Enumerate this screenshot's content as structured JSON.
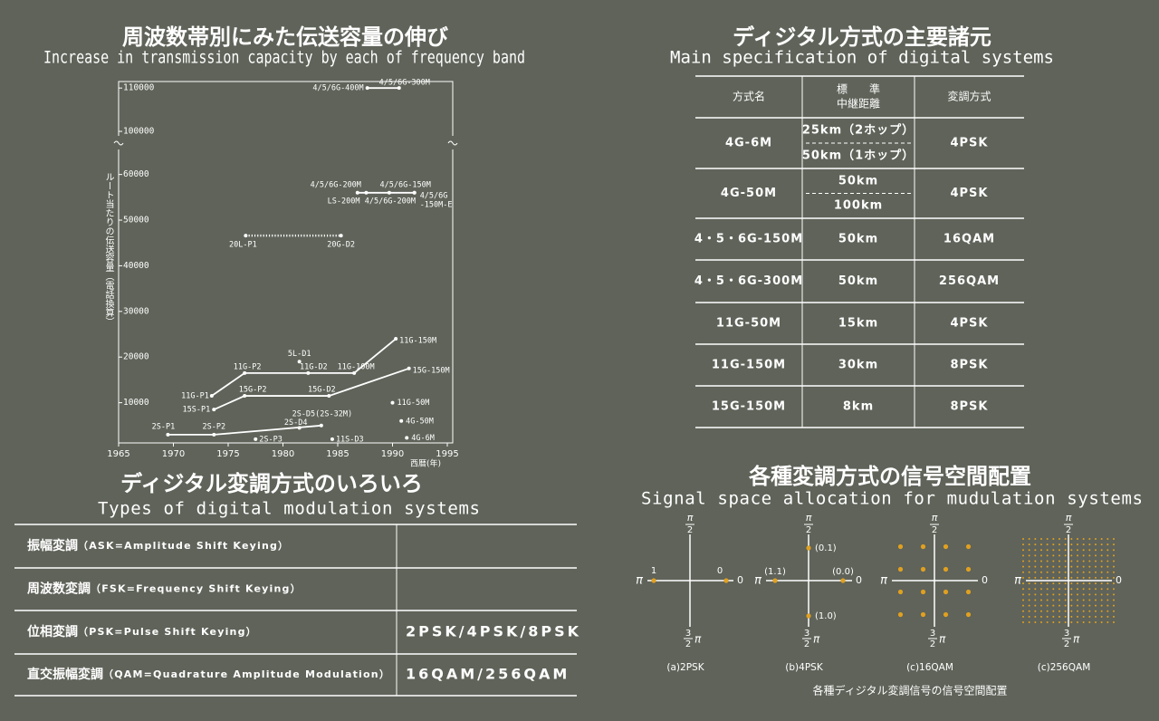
{
  "chart_data": {
    "type": "line",
    "title": "周波数帯別にみた伝送容量の伸び",
    "subtitle": "Increase in transmission capacity by each of frequency band",
    "y_label": "ルート当たりの伝送容量（電話換算）",
    "x_label": "西暦(年)",
    "xlim": [
      1965,
      1995
    ],
    "xticks": [
      1965,
      1970,
      1975,
      1980,
      1985,
      1990,
      1995
    ],
    "ylim": [
      [
        0,
        61000
      ],
      [
        98000,
        111500
      ]
    ],
    "yticks": [
      10000,
      20000,
      30000,
      40000,
      50000,
      60000,
      100000,
      110000
    ],
    "points": [
      {
        "label": "2S-P1",
        "x": 1969.5,
        "y": 3000
      },
      {
        "label": "2S-P2",
        "x": 1973.7,
        "y": 3000
      },
      {
        "label": "2S-D4",
        "x": 1981.5,
        "y": 4500
      },
      {
        "label": "2S-D5(2S-32M)",
        "x": 1983.5,
        "y": 5000
      },
      {
        "label": "2S-P3",
        "x": 1977.5,
        "y": 2000
      },
      {
        "label": "11S-D3",
        "x": 1984.5,
        "y": 2000
      },
      {
        "label": "11G-P1",
        "x": 1973.5,
        "y": 11500
      },
      {
        "label": "11G-P2",
        "x": 1976.5,
        "y": 16500
      },
      {
        "label": "11G-D2",
        "x": 1982.3,
        "y": 16500
      },
      {
        "label": "11G-100M",
        "x": 1986.5,
        "y": 16500
      },
      {
        "label": "11G-150M",
        "x": 1990.3,
        "y": 24000
      },
      {
        "label": "5L-D1",
        "x": 1981.5,
        "y": 19000
      },
      {
        "label": "15S-P1",
        "x": 1973.7,
        "y": 8500
      },
      {
        "label": "15G-P2",
        "x": 1976.5,
        "y": 11500
      },
      {
        "label": "15G-D2",
        "x": 1984.2,
        "y": 11500
      },
      {
        "label": "15G-150M",
        "x": 1991.5,
        "y": 17500
      },
      {
        "label": "11G-50M",
        "x": 1990,
        "y": 10000
      },
      {
        "label": "4G-50M",
        "x": 1990.8,
        "y": 6000
      },
      {
        "label": "4G-6M",
        "x": 1991.3,
        "y": 2300
      },
      {
        "label": "20L-P1",
        "x": 1976.6,
        "y": 46600
      },
      {
        "label": "20G-D2",
        "x": 1985.3,
        "y": 46600
      },
      {
        "label": "4/5/6G-200M",
        "x": 1986.8,
        "y": 56000
      },
      {
        "label": "LS-200M",
        "x": 1987.6,
        "y": 56000
      },
      {
        "label": "4/5/6G-200M",
        "x": 1989.7,
        "y": 56000
      },
      {
        "label": "4/5/6G-150M",
        "x": 1992,
        "y": 56000
      },
      {
        "label": [
          "4/5/6G",
          "-150M-E"
        ],
        "x": 1992,
        "y": 56000
      },
      {
        "label": "4/5/6G-400M",
        "x": 1987.7,
        "y": 110000
      },
      {
        "label": "4/5/6G-300M",
        "x": 1990.6,
        "y": 110000
      }
    ],
    "lines": [
      {
        "x": [
          1969.5,
          1973.7,
          1983.5
        ],
        "values": [
          3000,
          3000,
          5000
        ],
        "style": "solid"
      },
      {
        "x": [
          1973.5,
          1976.5,
          1986.5,
          1990.3
        ],
        "values": [
          11500,
          16500,
          16500,
          24000
        ],
        "style": "solid"
      },
      {
        "x": [
          1973.7,
          1976.5,
          1984.2,
          1991.5
        ],
        "values": [
          8500,
          11500,
          11500,
          17500
        ],
        "style": "solid"
      },
      {
        "x": [
          1976.6,
          1985.3
        ],
        "values": [
          46600,
          46600
        ],
        "style": "dotted"
      },
      {
        "x": [
          1986.8,
          1992
        ],
        "values": [
          56000,
          56000
        ],
        "style": "solid"
      },
      {
        "x": [
          1987.7,
          1990.6
        ],
        "values": [
          110000,
          110000
        ],
        "style": "solid"
      }
    ],
    "color": "#ffffff"
  },
  "spec": {
    "title": "ディジタル方式の主要諸元",
    "subtitle": "Main specification of digital systems",
    "header": [
      "方式名",
      [
        "標　　準",
        "中継距離"
      ],
      "変調方式"
    ],
    "rows": [
      [
        "4G-6M",
        [
          "25km（2ホップ）",
          "50km（1ホップ）"
        ],
        "4PSK"
      ],
      [
        "4G-50M",
        [
          "50km",
          "100km"
        ],
        "4PSK"
      ],
      [
        "4・5・6G-150M",
        "50km",
        "16QAM"
      ],
      [
        "4・5・6G-300M",
        "50km",
        "256QAM"
      ],
      [
        "11G-50M",
        "15km",
        "4PSK"
      ],
      [
        "11G-150M",
        "30km",
        "8PSK"
      ],
      [
        "15G-150M",
        "8km",
        "8PSK"
      ]
    ]
  },
  "modulation": {
    "title": "ディジタル変調方式のいろいろ",
    "subtitle": "Types of digital modulation systems",
    "rows": [
      {
        "label": "振幅変調",
        "detail": "（ASK=Amplitude Shift Keying）"
      },
      {
        "label": "周波数変調",
        "detail": "（FSK=Frequency Shift Keying）"
      },
      {
        "label": "位相変調",
        "detail": "（PSK=Pulse Shift Keying）",
        "systems": "2PSK/4PSK/8PSK"
      },
      {
        "label": "直交振幅変調",
        "detail": "（QAM=Quadrature Amplitude Modulation）",
        "systems": "16QAM/256QAM"
      }
    ]
  },
  "signal_space": {
    "title": "各種変調方式の信号空間配置",
    "subtitle": "Signal space allocation for mudulation systems",
    "axis_labels": {
      "pi": "π",
      "two": "2",
      "three": "3",
      "zero": "0"
    },
    "diagrams": [
      {
        "caption": "(a)2PSK",
        "point_labels": [
          "1",
          "0"
        ]
      },
      {
        "caption": "(b)4PSK",
        "point_labels": [
          "(1.1)",
          "(0.0)",
          "(0.1)",
          "(1.0)"
        ]
      },
      {
        "caption": "(c)16QAM"
      },
      {
        "caption": "(c)256QAM"
      }
    ],
    "footer": "各種ディジタル変調信号の信号空間配置",
    "dot_color": "#e0a020"
  }
}
